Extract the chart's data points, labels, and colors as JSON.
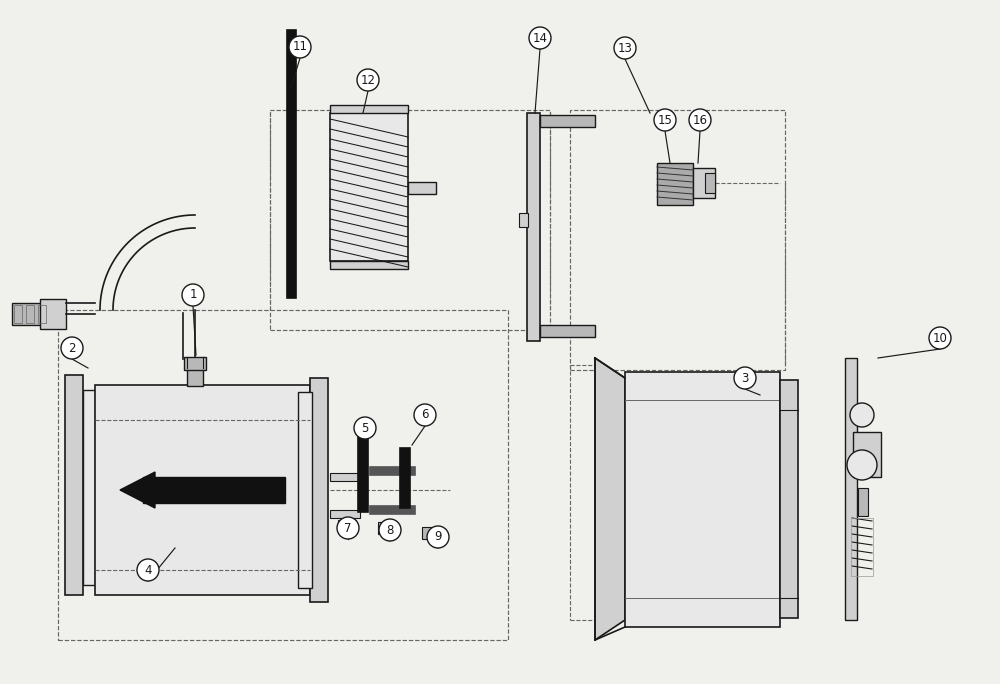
{
  "bg": "#f0f0ec",
  "lc": "#1a1a1a",
  "gray1": "#d0d0d0",
  "gray2": "#e8e8e8",
  "gray3": "#b8b8b8",
  "black": "#111111",
  "dash_c": "#666666"
}
